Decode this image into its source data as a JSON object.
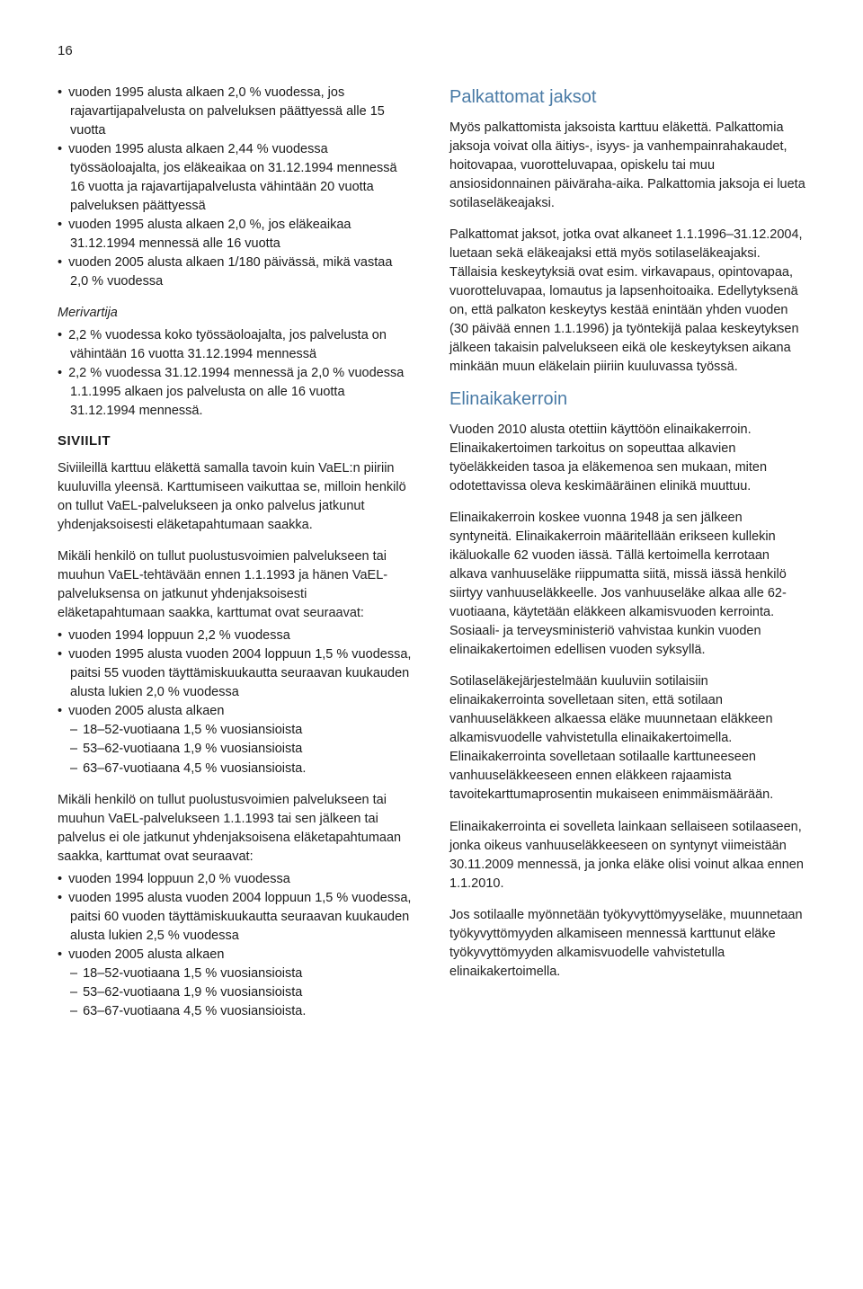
{
  "colors": {
    "text": "#222222",
    "blue_heading": "#4a7ba6",
    "background": "#ffffff"
  },
  "typography": {
    "body_fontsize": 14.5,
    "blue_heading_fontsize": 20,
    "section_heading_fontsize": 15,
    "line_height": 1.45
  },
  "pageNumber": "16",
  "left": {
    "bullets1": [
      "vuoden 1995 alusta alkaen 2,0 % vuodessa, jos rajavartijapalvelusta on palveluksen päättyessä alle 15 vuotta",
      "vuoden 1995 alusta alkaen 2,44 % vuodessa työssäoloajalta, jos eläkeaikaa on 31.12.1994 mennessä 16 vuotta ja rajavartijapalvelusta vähintään 20 vuotta palveluksen päättyessä",
      "vuoden 1995 alusta alkaen 2,0 %, jos eläkeaikaa 31.12.1994 mennessä alle 16 vuotta",
      "vuoden 2005 alusta alkaen 1/180 päivässä, mikä vastaa 2,0 % vuodessa"
    ],
    "merivartija_label": "Merivartija",
    "bullets2": [
      "2,2 % vuodessa koko työssäoloajalta, jos palvelusta on vähintään 16 vuotta 31.12.1994 mennessä",
      "2,2 % vuodessa 31.12.1994 mennessä ja 2,0 % vuodessa 1.1.1995 alkaen jos palvelusta on alle 16 vuotta 31.12.1994 mennessä."
    ],
    "siviilit_heading": "SIVIILIT",
    "p1": "Siviileillä karttuu eläkettä samalla tavoin kuin VaEL:n piiriin kuuluvilla yleensä. Karttumiseen vaikuttaa se, milloin henkilö on tullut VaEL-palvelukseen ja onko palvelus jatkunut yhdenjaksoisesti eläketapahtumaan saakka.",
    "p2": "Mikäli henkilö on tullut puolustusvoimien palvelukseen tai muuhun VaEL-tehtävään ennen 1.1.1993 ja hänen VaEL-palveluksensa on jatkunut yhdenjaksoisesti eläketapahtumaan saakka, karttumat ovat seuraavat:",
    "bullets3": [
      "vuoden 1994 loppuun 2,2 % vuodessa",
      "vuoden 1995 alusta vuoden 2004 loppuun 1,5 % vuodessa, paitsi 55 vuoden täyttämiskuukautta seuraavan kuukauden alusta lukien 2,0 % vuodessa",
      "vuoden 2005 alusta alkaen"
    ],
    "sub3": [
      "18–52-vuotiaana 1,5 % vuosiansioista",
      "53–62-vuotiaana 1,9 % vuosiansioista",
      "63–67-vuotiaana 4,5 % vuosiansioista."
    ],
    "p3": "Mikäli henkilö on tullut puolustusvoimien palvelukseen tai muuhun VaEL-palvelukseen 1.1.1993 tai sen jälkeen tai palvelus ei ole jatkunut yhdenjaksoisena eläketapahtumaan saakka, karttumat ovat seuraavat:",
    "bullets4": [
      "vuoden 1994 loppuun 2,0 % vuodessa",
      "vuoden 1995 alusta vuoden 2004 loppuun 1,5 % vuodessa, paitsi 60 vuoden täyttämiskuukautta seuraavan kuukauden alusta lukien 2,5 % vuodessa",
      "vuoden 2005 alusta alkaen"
    ],
    "sub4": [
      "18–52-vuotiaana 1,5 % vuosiansioista",
      "53–62-vuotiaana 1,9 % vuosiansioista",
      "63–67-vuotiaana 4,5 % vuosiansioista."
    ]
  },
  "right": {
    "h1": "Palkattomat jaksot",
    "p1": "Myös palkattomista jaksoista karttuu eläkettä. Palkattomia jaksoja voivat olla äitiys-, isyys- ja vanhempainrahakaudet, hoitovapaa, vuorotteluvapaa, opiskelu tai muu ansiosidonnainen päiväraha-aika. Palkattomia jaksoja ei lueta sotilaseläkeajaksi.",
    "p2": "Palkattomat jaksot, jotka ovat alkaneet 1.1.1996–31.12.2004, luetaan sekä eläkeajaksi että myös sotilaseläkeajaksi. Tällaisia keskeytyksiä ovat esim. virkavapaus, opintovapaa, vuorotteluvapaa, lomautus ja lapsenhoitoaika. Edellytyksenä on, että palkaton keskeytys kestää enintään yhden vuoden (30 päivää ennen 1.1.1996) ja työntekijä palaa keskeytyksen jälkeen takaisin palvelukseen eikä ole keskeytyksen aikana minkään muun eläkelain piiriin kuuluvassa työssä.",
    "h2": "Elinaikakerroin",
    "p3": "Vuoden 2010 alusta otettiin käyttöön elinaikakerroin. Elinaikakertoimen tarkoitus on sopeuttaa alkavien työeläkkeiden tasoa ja eläkemenoa sen mukaan, miten odotettavissa oleva keskimääräinen elinikä muuttuu.",
    "p4": "Elinaikakerroin koskee vuonna 1948 ja sen jälkeen syntyneitä. Elinaikakerroin määritellään erikseen kullekin ikäluokalle 62 vuoden iässä. Tällä kertoimella kerrotaan alkava vanhuuseläke riippumatta siitä, missä iässä henkilö siirtyy vanhuuseläkkeelle. Jos vanhuuseläke alkaa alle 62-vuotiaana, käytetään eläkkeen alkamisvuoden kerrointa. Sosiaali- ja terveysministeriö vahvistaa kunkin vuoden elinaikakertoimen edellisen vuoden syksyllä.",
    "p5": "Sotilaseläkejärjestelmään kuuluviin sotilaisiin elinaikakerrointa sovelletaan siten, että sotilaan vanhuuseläkkeen alkaessa eläke muunnetaan eläkkeen alkamisvuodelle vahvistetulla elinaikakertoimella. Elinaikakerrointa sovelletaan sotilaalle karttuneeseen vanhuuseläkkeeseen ennen eläkkeen rajaamista tavoitekarttumaprosentin mukaiseen enimmäismäärään.",
    "p6": "Elinaikakerrointa ei sovelleta lainkaan sellaiseen sotilaaseen, jonka oikeus vanhuuseläkkeeseen on syntynyt viimeistään 30.11.2009 mennessä, ja jonka eläke olisi voinut alkaa ennen 1.1.2010.",
    "p7": "Jos sotilaalle myönnetään työkyvyttömyyseläke, muunnetaan työkyvyttömyyden alkamiseen mennessä karttunut eläke työkyvyttömyyden alkamisvuodelle vahvistetulla elinaikakertoimella."
  }
}
